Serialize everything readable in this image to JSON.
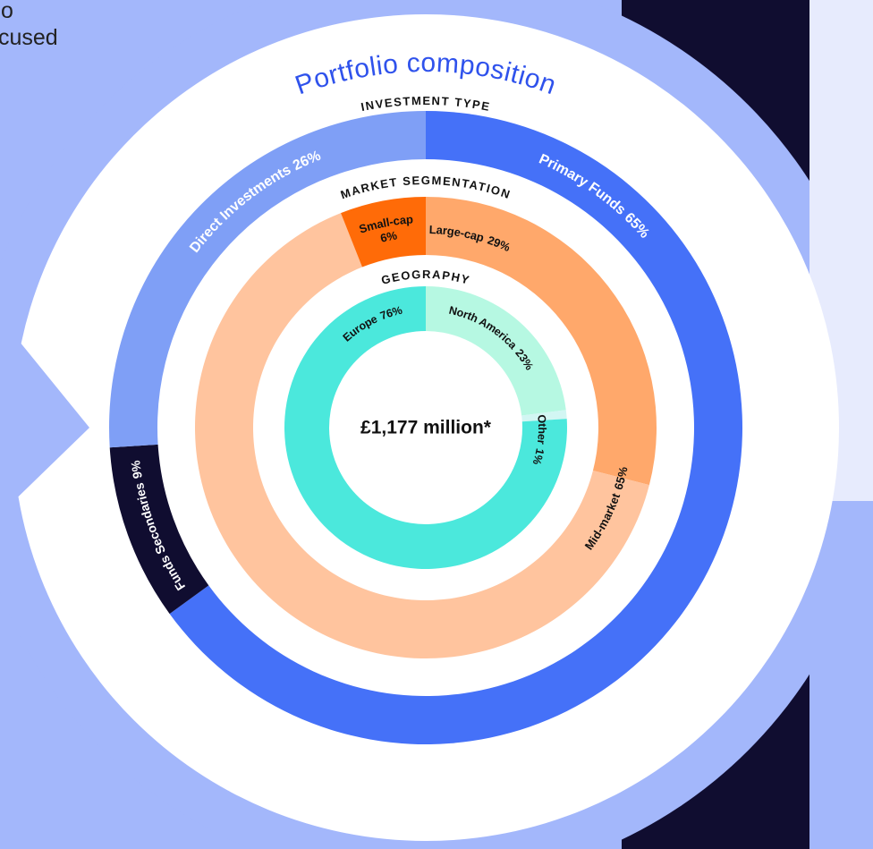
{
  "title": "Portfolio composition",
  "center_label": "£1,177 million*",
  "fragments": [
    "o",
    "cused"
  ],
  "chart_data": [
    {
      "type": "donut",
      "title": "INVESTMENT TYPE",
      "categories": [
        "Primary Funds",
        "Funds Secondaries",
        "Direct Investments"
      ],
      "values": [
        65,
        9,
        26
      ],
      "value_labels": [
        "65%",
        "9%",
        "26%"
      ],
      "colors": [
        "#4571f8",
        "#100d30",
        "#7f9ff6"
      ]
    },
    {
      "type": "donut",
      "title": "MARKET SEGMENTATION",
      "categories": [
        "Large-cap",
        "Mid-market",
        "Small-cap"
      ],
      "values": [
        29,
        65,
        6
      ],
      "value_labels": [
        "29%",
        "65%",
        "6%"
      ],
      "colors": [
        "#ffa86b",
        "#ffc49e",
        "#ff6b08"
      ]
    },
    {
      "type": "donut",
      "title": "GEOGRAPHY",
      "categories": [
        "North America",
        "Other",
        "Europe"
      ],
      "values": [
        23,
        1,
        76
      ],
      "value_labels": [
        "23%",
        "1%",
        "76%"
      ],
      "colors": [
        "#b6f8e2",
        "#d2f6f3",
        "#4be8dc"
      ]
    }
  ]
}
